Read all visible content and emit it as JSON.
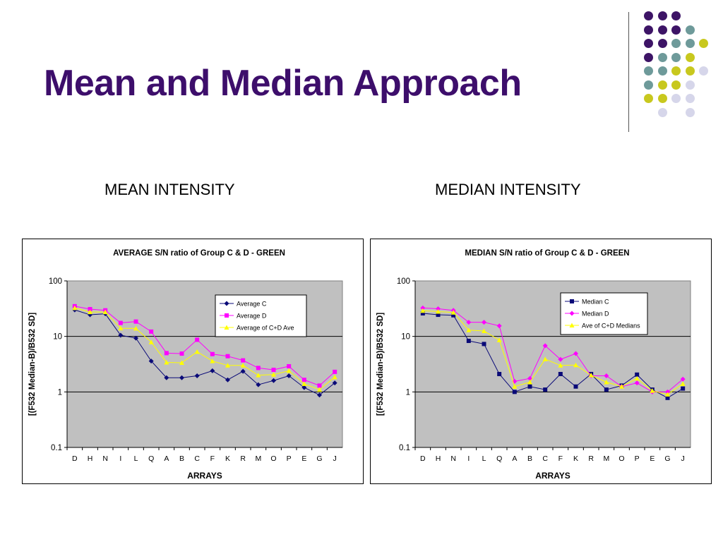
{
  "slide": {
    "title": "Mean and Median Approach",
    "left_heading": "MEAN INTENSITY",
    "right_heading": "MEDIAN INTENSITY",
    "decor_colors": {
      "purple": "#3d1466",
      "teal": "#6e9a9a",
      "yellow": "#c8c81e",
      "lavender": "#d6d6ea"
    }
  },
  "chart_data": [
    {
      "type": "line",
      "title": "AVERAGE S/N ratio of Group C & D - GREEN",
      "xlabel": "ARRAYS",
      "ylabel": "[(F532 Median-B)/B532 SD]",
      "yscale": "log",
      "ylim": [
        0.1,
        100
      ],
      "yticks": [
        "0.1",
        "1",
        "10",
        "100"
      ],
      "grid": true,
      "legend": "top-right",
      "categories": [
        "D",
        "H",
        "N",
        "I",
        "L",
        "Q",
        "A",
        "B",
        "C",
        "F",
        "K",
        "R",
        "M",
        "O",
        "P",
        "E",
        "G",
        "J"
      ],
      "series": [
        {
          "name": "Average C",
          "color": "#0a0a78",
          "marker": "diamond",
          "values": [
            30,
            24.5,
            25.5,
            10.5,
            9.3,
            3.6,
            1.8,
            1.8,
            1.95,
            2.4,
            1.65,
            2.35,
            1.35,
            1.6,
            1.95,
            1.2,
            0.88,
            1.45
          ]
        },
        {
          "name": "Average D",
          "color": "#ff00ff",
          "marker": "square",
          "values": [
            35,
            31,
            29.5,
            17.5,
            18.5,
            12.2,
            5.0,
            4.9,
            8.7,
            4.8,
            4.4,
            3.7,
            2.7,
            2.5,
            2.9,
            1.65,
            1.3,
            2.3
          ]
        },
        {
          "name": "Average of C+D Ave",
          "color": "#ffff00",
          "marker": "triangle",
          "values": [
            32.5,
            27.5,
            27.5,
            14,
            13.9,
            7.9,
            3.4,
            3.35,
            5.3,
            3.6,
            3.0,
            3.0,
            2.0,
            2.05,
            2.4,
            1.4,
            1.1,
            1.85
          ]
        }
      ]
    },
    {
      "type": "line",
      "title": "MEDIAN S/N ratio of Group C & D - GREEN",
      "xlabel": "ARRAYS",
      "ylabel": "[(F532 Median-B)/B532 SD]",
      "yscale": "log",
      "ylim": [
        0.1,
        100
      ],
      "yticks": [
        "0.1",
        "1",
        "10",
        "100"
      ],
      "grid": true,
      "legend": "top-right",
      "categories": [
        "D",
        "H",
        "N",
        "I",
        "L",
        "Q",
        "A",
        "B",
        "C",
        "F",
        "K",
        "R",
        "M",
        "O",
        "P",
        "E",
        "G",
        "J"
      ],
      "series": [
        {
          "name": "Median C",
          "color": "#0a0a78",
          "marker": "square",
          "values": [
            26,
            24.5,
            24,
            8.3,
            7.3,
            2.1,
            1.0,
            1.25,
            1.1,
            2.1,
            1.25,
            2.1,
            1.1,
            1.3,
            2.05,
            1.1,
            0.78,
            1.15
          ]
        },
        {
          "name": "Median D",
          "color": "#ff00ff",
          "marker": "diamond",
          "values": [
            32.5,
            31.5,
            29.5,
            18,
            18,
            15.5,
            1.55,
            1.75,
            6.8,
            3.85,
            4.9,
            1.95,
            1.95,
            1.25,
            1.45,
            1.0,
            1.0,
            1.7
          ]
        },
        {
          "name": "Ave of C+D Medians",
          "color": "#ffff00",
          "marker": "triangle",
          "values": [
            29,
            28,
            27,
            13,
            12.5,
            8.6,
            1.25,
            1.5,
            3.9,
            3.0,
            3.05,
            2.0,
            1.5,
            1.25,
            1.75,
            1.05,
            0.9,
            1.4
          ]
        }
      ]
    }
  ]
}
